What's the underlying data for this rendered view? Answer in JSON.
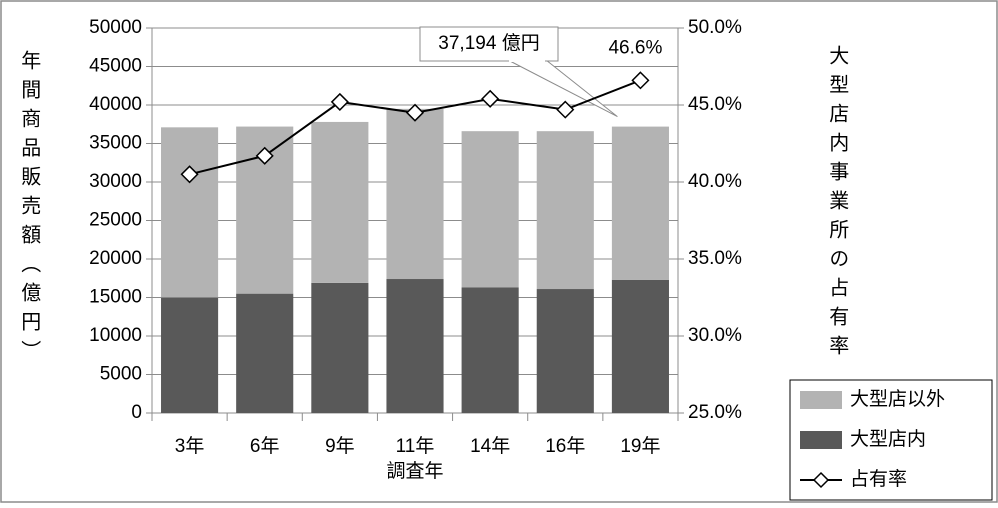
{
  "chart_data": {
    "type": "bar",
    "stacked": true,
    "categories": [
      "3年",
      "6年",
      "9年",
      "11年",
      "14年",
      "16年",
      "19年"
    ],
    "series": [
      {
        "name": "大型店内",
        "color": "#595959",
        "values": [
          15000,
          15500,
          16900,
          17400,
          16300,
          16100,
          17300
        ]
      },
      {
        "name": "大型店以外",
        "color": "#b3b3b3",
        "values": [
          22100,
          21700,
          20900,
          22100,
          20300,
          20500,
          19894
        ]
      },
      {
        "name": "占有率",
        "type": "line",
        "axis": "y2",
        "color": "#000000",
        "values": [
          40.5,
          41.7,
          45.2,
          44.5,
          45.4,
          44.7,
          46.6
        ]
      }
    ],
    "legend_order": [
      1,
      0,
      2
    ],
    "x_label": "調査年",
    "y_label": "年間商品販売額（億円）",
    "y2_label": "大型店内事業所の占有率",
    "ylim": [
      0,
      50000
    ],
    "yticks": [
      0,
      5000,
      10000,
      15000,
      20000,
      25000,
      30000,
      35000,
      40000,
      45000,
      50000
    ],
    "y2lim": [
      25,
      50
    ],
    "y2ticks": [
      {
        "value": 25,
        "label": "25.0%"
      },
      {
        "value": 30,
        "label": "30.0%"
      },
      {
        "value": 35,
        "label": "35.0%"
      },
      {
        "value": 40,
        "label": "40.0%"
      },
      {
        "value": 45,
        "label": "45.0%"
      },
      {
        "value": 50,
        "label": "50.0%"
      }
    ],
    "grid": true,
    "legend": "lower right",
    "annotations": [
      {
        "text": "37,194 億円"
      },
      {
        "text": "46.6%"
      }
    ]
  }
}
